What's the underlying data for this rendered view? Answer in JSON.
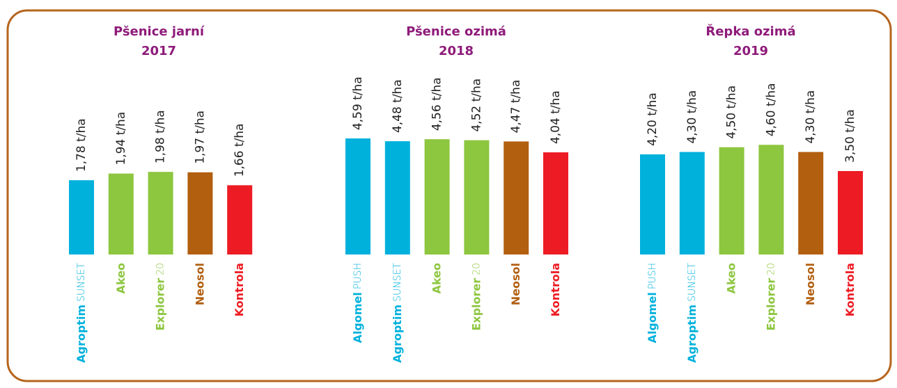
{
  "chart_data": [
    {
      "type": "bar",
      "title": "Pšenice jarní",
      "subtitle": "2017",
      "categories": [
        "Agroptim",
        "Akeo",
        "Explorer",
        "Neosol",
        "Kontrola"
      ],
      "category_suffixes": [
        "SUNSET",
        null,
        "20",
        null,
        null
      ],
      "values": [
        1.78,
        1.94,
        1.98,
        1.97,
        1.66
      ],
      "value_labels": [
        "1,78 t/ha",
        "1,94 t/ha",
        "1,98 t/ha",
        "1,97 t/ha",
        "1,66 t/ha"
      ],
      "colors": [
        "#00b1dc",
        "#8dc63f",
        "#8dc63f",
        "#b25f10",
        "#ed1c24"
      ],
      "ylim": [
        0,
        4
      ]
    },
    {
      "type": "bar",
      "title": "Pšenice ozimá",
      "subtitle": "2018",
      "categories": [
        "Algomel",
        "Agroptim",
        "Akeo",
        "Explorer",
        "Neosol",
        "Kontrola"
      ],
      "category_suffixes": [
        "PUSH",
        "SUNSET",
        null,
        "20",
        null,
        null
      ],
      "values": [
        4.59,
        4.48,
        4.56,
        4.52,
        4.47,
        4.04
      ],
      "value_labels": [
        "4,59 t/ha",
        "4,48 t/ha",
        "4,56 t/ha",
        "4,52 t/ha",
        "4,47 t/ha",
        "4,04 t/ha"
      ],
      "colors": [
        "#00b1dc",
        "#00b1dc",
        "#8dc63f",
        "#8dc63f",
        "#b25f10",
        "#ed1c24"
      ],
      "ylim": [
        0,
        6.6
      ]
    },
    {
      "type": "bar",
      "title": "Řepka ozimá",
      "subtitle": "2019",
      "categories": [
        "Algomel",
        "Agroptim",
        "Akeo",
        "Explorer",
        "Neosol",
        "Kontrola"
      ],
      "category_suffixes": [
        "PUSH",
        "SUNSET",
        null,
        "20",
        null,
        null
      ],
      "values": [
        4.2,
        4.3,
        4.5,
        4.6,
        4.3,
        3.5
      ],
      "value_labels": [
        "4,20 t/ha",
        "4,30 t/ha",
        "4,50 t/ha",
        "4,60 t/ha",
        "4,30 t/ha",
        "3,50 t/ha"
      ],
      "colors": [
        "#00b1dc",
        "#00b1dc",
        "#8dc63f",
        "#8dc63f",
        "#b25f10",
        "#ed1c24"
      ],
      "ylim": [
        0,
        7
      ]
    }
  ]
}
